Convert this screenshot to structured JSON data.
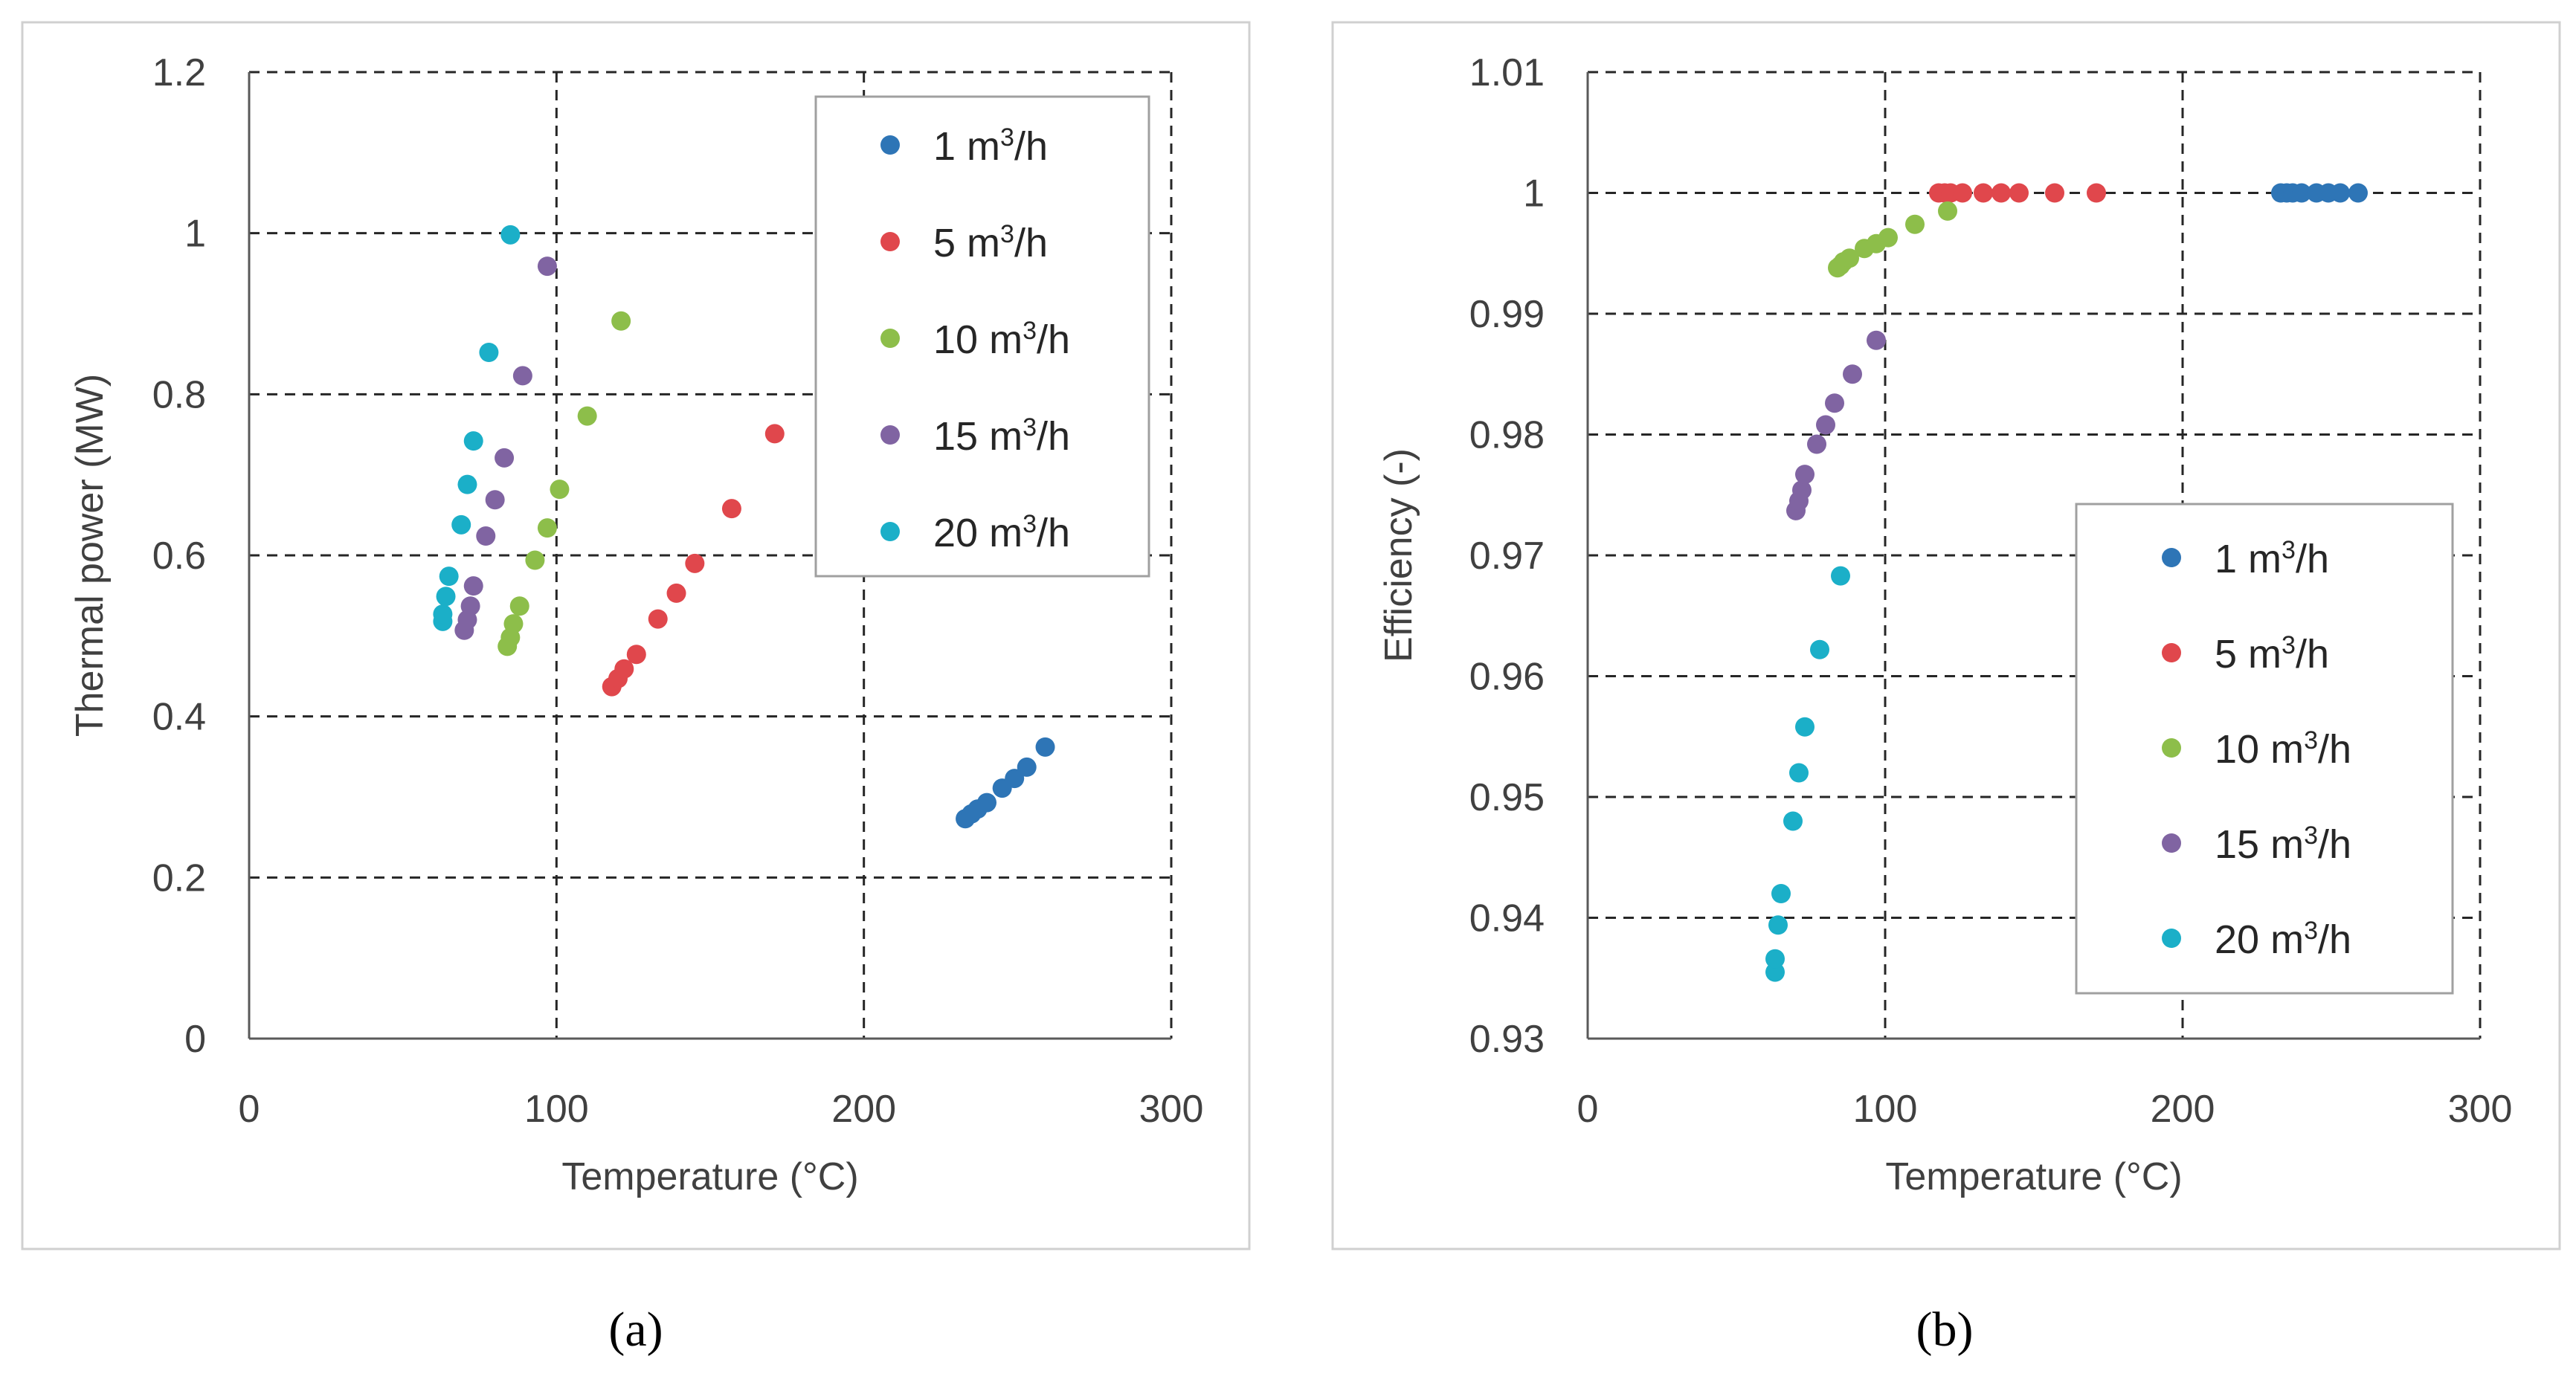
{
  "chart_data": [
    {
      "type": "scatter",
      "panel_label": "(a)",
      "xlabel": "Temperature (°C)",
      "ylabel": "Thermal power (MW)",
      "xlim": [
        0,
        300
      ],
      "ylim": [
        0,
        1.2
      ],
      "xticks": [
        0,
        100,
        200,
        300
      ],
      "yticks": [
        0,
        0.2,
        0.4,
        0.6,
        0.8,
        1,
        1.2
      ],
      "ytick_labels": [
        "0",
        "0.2",
        "0.4",
        "0.6",
        "0.8",
        "1",
        "1.2"
      ],
      "grid": true,
      "legend_position": "top-right",
      "series": [
        {
          "name": "1 m3/h",
          "label_main": "1 m",
          "label_sup": "3",
          "label_tail": "/h",
          "color": "#2E75B6",
          "x": [
            233,
            235,
            237,
            240,
            245,
            249,
            253,
            259
          ],
          "y": [
            0.273,
            0.279,
            0.285,
            0.293,
            0.311,
            0.323,
            0.337,
            0.362
          ]
        },
        {
          "name": "5 m3/h",
          "label_main": "5 m",
          "label_sup": "3",
          "label_tail": "/h",
          "color": "#E0474C",
          "x": [
            118,
            120,
            122,
            126,
            133,
            139,
            145,
            157,
            171
          ],
          "y": [
            0.437,
            0.447,
            0.459,
            0.477,
            0.521,
            0.553,
            0.59,
            0.658,
            0.751
          ]
        },
        {
          "name": "10 m3/h",
          "label_main": "10 m",
          "label_sup": "3",
          "label_tail": "/h",
          "color": "#8DBE4A",
          "x": [
            84,
            85,
            86,
            88,
            93,
            97,
            101,
            110,
            121
          ],
          "y": [
            0.487,
            0.498,
            0.515,
            0.537,
            0.594,
            0.634,
            0.682,
            0.773,
            0.891
          ]
        },
        {
          "name": "15 m3/h",
          "label_main": "15 m",
          "label_sup": "3",
          "label_tail": "/h",
          "color": "#8064A2",
          "x": [
            70,
            71,
            72,
            73,
            77,
            80,
            83,
            89,
            97
          ],
          "y": [
            0.507,
            0.52,
            0.537,
            0.562,
            0.624,
            0.669,
            0.721,
            0.823,
            0.959
          ]
        },
        {
          "name": "20 m3/h",
          "label_main": "20 m",
          "label_sup": "3",
          "label_tail": "/h",
          "color": "#1BAFC8",
          "x": [
            63,
            63,
            64,
            65,
            69,
            71,
            73,
            78,
            85
          ],
          "y": [
            0.518,
            0.527,
            0.549,
            0.574,
            0.638,
            0.688,
            0.742,
            0.852,
            0.998
          ]
        }
      ]
    },
    {
      "type": "scatter",
      "panel_label": "(b)",
      "xlabel": "Temperature (°C)",
      "ylabel": "Efficiency (-)",
      "xlim": [
        0,
        300
      ],
      "ylim": [
        0.93,
        1.01
      ],
      "xticks": [
        0,
        100,
        200,
        300
      ],
      "yticks": [
        0.93,
        0.94,
        0.95,
        0.96,
        0.97,
        0.98,
        0.99,
        1,
        1.01
      ],
      "ytick_labels": [
        "0.93",
        "0.94",
        "0.95",
        "0.96",
        "0.97",
        "0.98",
        "0.99",
        "1",
        "1.01"
      ],
      "grid": true,
      "legend_position": "center-right",
      "series": [
        {
          "name": "1 m3/h",
          "label_main": "1 m",
          "label_sup": "3",
          "label_tail": "/h",
          "color": "#2E75B6",
          "x": [
            233,
            235,
            237,
            240,
            245,
            249,
            253,
            259
          ],
          "y": [
            1.0,
            1.0,
            1.0,
            1.0,
            1.0,
            1.0,
            1.0,
            1.0
          ]
        },
        {
          "name": "5 m3/h",
          "label_main": "5 m",
          "label_sup": "3",
          "label_tail": "/h",
          "color": "#E0474C",
          "x": [
            118,
            120,
            122,
            126,
            133,
            139,
            145,
            157,
            171
          ],
          "y": [
            1.0,
            1.0,
            1.0,
            1.0,
            1.0,
            1.0,
            1.0,
            1.0,
            1.0
          ]
        },
        {
          "name": "10 m3/h",
          "label_main": "10 m",
          "label_sup": "3",
          "label_tail": "/h",
          "color": "#8DBE4A",
          "x": [
            84,
            85,
            86,
            88,
            93,
            97,
            101,
            110,
            121
          ],
          "y": [
            0.9938,
            0.994,
            0.9943,
            0.9946,
            0.9954,
            0.9958,
            0.9963,
            0.9974,
            0.9985
          ]
        },
        {
          "name": "15 m3/h",
          "label_main": "15 m",
          "label_sup": "3",
          "label_tail": "/h",
          "color": "#8064A2",
          "x": [
            70,
            71,
            72,
            73,
            77,
            80,
            83,
            89,
            97
          ],
          "y": [
            0.9737,
            0.9745,
            0.9754,
            0.9767,
            0.9792,
            0.9808,
            0.9826,
            0.985,
            0.9878
          ]
        },
        {
          "name": "20 m3/h",
          "label_main": "20 m",
          "label_sup": "3",
          "label_tail": "/h",
          "color": "#1BAFC8",
          "x": [
            63,
            63,
            64,
            65,
            69,
            71,
            73,
            78,
            85
          ],
          "y": [
            0.9355,
            0.9366,
            0.9394,
            0.942,
            0.948,
            0.952,
            0.9558,
            0.9622,
            0.9683
          ]
        }
      ]
    }
  ]
}
